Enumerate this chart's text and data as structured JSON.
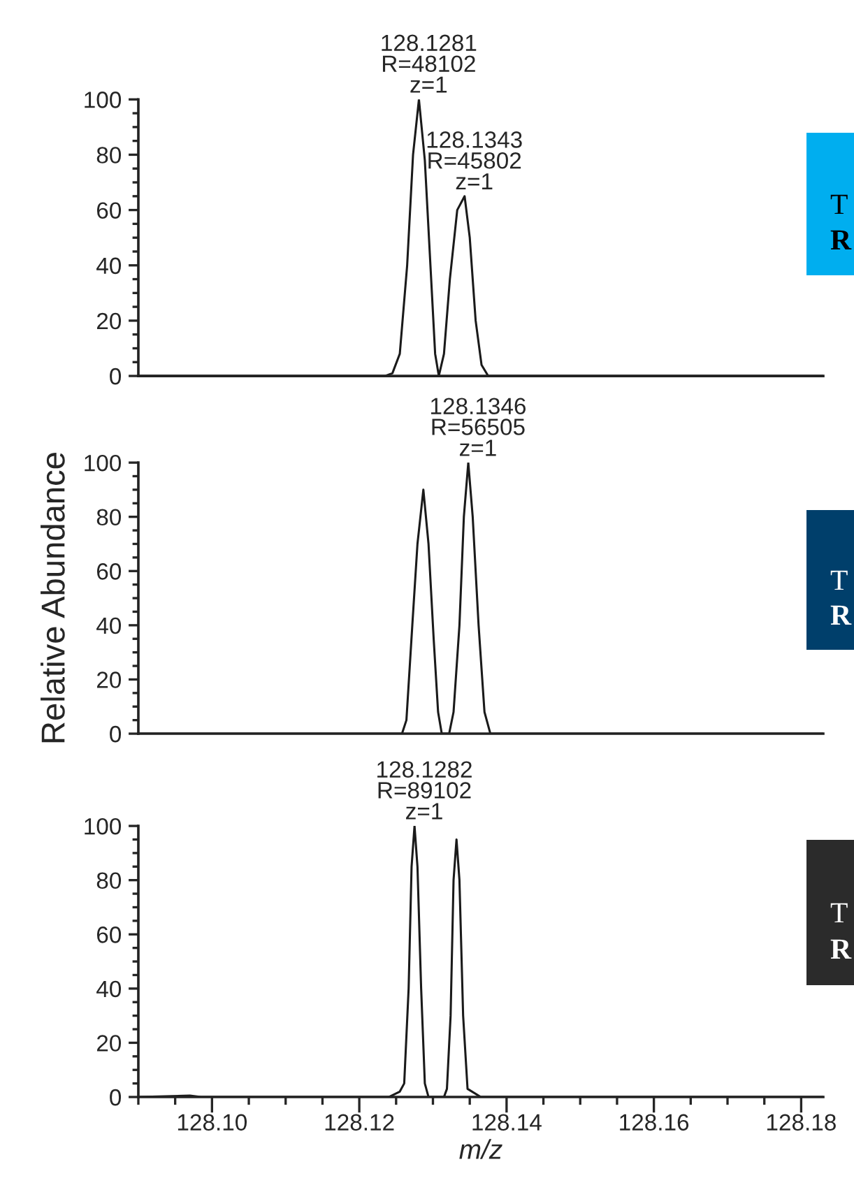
{
  "chart_data": [
    {
      "type": "line",
      "xlim": [
        128.09,
        128.183
      ],
      "ylim": [
        0,
        100
      ],
      "tick_labels": "y",
      "grid": false,
      "marker": "none",
      "line_style": "solid",
      "yticks": [
        0,
        {
          "value": 5,
          "label": null
        },
        {
          "value": 10,
          "label": null
        },
        {
          "value": 15,
          "label": null
        },
        20,
        {
          "value": 25,
          "label": null
        },
        {
          "value": 30,
          "label": null
        },
        {
          "value": 35,
          "label": null
        },
        40,
        {
          "value": 45,
          "label": null
        },
        {
          "value": 50,
          "label": null
        },
        {
          "value": 55,
          "label": null
        },
        60,
        {
          "value": 65,
          "label": null
        },
        {
          "value": 70,
          "label": null
        },
        {
          "value": 75,
          "label": null
        },
        80,
        {
          "value": 85,
          "label": null
        },
        {
          "value": 90,
          "label": null
        },
        {
          "value": 95,
          "label": null
        },
        100
      ],
      "series": [
        {
          "color": "#1a1a1a",
          "x": [
            128.09,
            128.1235,
            128.1245,
            128.1255,
            128.1265,
            128.1273,
            128.1281,
            128.1289,
            128.1297,
            128.1303,
            128.1308,
            128.1315,
            128.1323,
            128.1333,
            128.1343,
            128.135,
            128.1358,
            128.1366,
            128.1375,
            128.183
          ],
          "values": [
            0,
            0,
            1,
            8,
            40,
            80,
            100,
            78,
            38,
            8,
            0,
            8,
            35,
            60,
            65,
            50,
            20,
            4,
            0,
            0
          ]
        }
      ],
      "annotations": [
        {
          "text": "128.1281\nR=48102\nz=1",
          "x": 128.1281,
          "y": 100
        },
        {
          "text": "128.1343\nR=45802\nz=1",
          "x": 128.1343,
          "y": 65
        },
        "T",
        "R"
      ]
    },
    {
      "type": "line",
      "xlim": [
        128.09,
        128.183
      ],
      "ylim": [
        0,
        100
      ],
      "tick_labels": "y",
      "grid": false,
      "marker": "none",
      "line_style": "solid",
      "ylabel": "Relative Abundance",
      "yticks": [
        0,
        {
          "value": 5,
          "label": null
        },
        {
          "value": 10,
          "label": null
        },
        {
          "value": 15,
          "label": null
        },
        20,
        {
          "value": 25,
          "label": null
        },
        {
          "value": 30,
          "label": null
        },
        {
          "value": 35,
          "label": null
        },
        40,
        {
          "value": 45,
          "label": null
        },
        {
          "value": 50,
          "label": null
        },
        {
          "value": 55,
          "label": null
        },
        60,
        {
          "value": 65,
          "label": null
        },
        {
          "value": 70,
          "label": null
        },
        {
          "value": 75,
          "label": null
        },
        80,
        {
          "value": 85,
          "label": null
        },
        {
          "value": 90,
          "label": null
        },
        {
          "value": 95,
          "label": null
        },
        100
      ],
      "series": [
        {
          "color": "#1a1a1a",
          "x": [
            128.09,
            128.1258,
            128.1264,
            128.1272,
            128.1279,
            128.1287,
            128.1294,
            128.1301,
            128.1307,
            128.1312,
            128.1322,
            128.1328,
            128.1336,
            128.1342,
            128.1348,
            128.1354,
            128.1362,
            128.137,
            128.1378,
            128.183
          ],
          "values": [
            0,
            0,
            5,
            40,
            70,
            90,
            70,
            35,
            8,
            0,
            0,
            8,
            40,
            80,
            100,
            80,
            40,
            8,
            0,
            0
          ]
        }
      ],
      "annotations": [
        {
          "text": "128.1346\nR=56505\nz=1",
          "x": 128.1348,
          "y": 100
        },
        "T",
        "R"
      ]
    },
    {
      "type": "line",
      "xlim": [
        128.09,
        128.183
      ],
      "ylim": [
        0,
        100
      ],
      "grid": false,
      "marker": "none",
      "line_style": "solid",
      "xlabel": "m/z",
      "xticks": [
        {
          "value": 128.09,
          "label": null
        },
        {
          "value": 128.095,
          "label": null
        },
        {
          "value": 128.1,
          "label": "128.10"
        },
        {
          "value": 128.105,
          "label": null
        },
        {
          "value": 128.11,
          "label": null
        },
        {
          "value": 128.115,
          "label": null
        },
        {
          "value": 128.12,
          "label": "128.12"
        },
        {
          "value": 128.125,
          "label": null
        },
        {
          "value": 128.13,
          "label": null
        },
        {
          "value": 128.135,
          "label": null
        },
        {
          "value": 128.14,
          "label": "128.14"
        },
        {
          "value": 128.145,
          "label": null
        },
        {
          "value": 128.15,
          "label": null
        },
        {
          "value": 128.155,
          "label": null
        },
        {
          "value": 128.16,
          "label": "128.16"
        },
        {
          "value": 128.165,
          "label": null
        },
        {
          "value": 128.17,
          "label": null
        },
        {
          "value": 128.175,
          "label": null
        },
        {
          "value": 128.18,
          "label": "128.18"
        }
      ],
      "yticks": [
        0,
        {
          "value": 5,
          "label": null
        },
        {
          "value": 10,
          "label": null
        },
        {
          "value": 15,
          "label": null
        },
        20,
        {
          "value": 25,
          "label": null
        },
        {
          "value": 30,
          "label": null
        },
        {
          "value": 35,
          "label": null
        },
        40,
        {
          "value": 45,
          "label": null
        },
        {
          "value": 50,
          "label": null
        },
        {
          "value": 55,
          "label": null
        },
        60,
        {
          "value": 65,
          "label": null
        },
        {
          "value": 70,
          "label": null
        },
        {
          "value": 75,
          "label": null
        },
        80,
        {
          "value": 85,
          "label": null
        },
        {
          "value": 90,
          "label": null
        },
        {
          "value": 95,
          "label": null
        },
        100
      ],
      "series": [
        {
          "color": "#1a1a1a",
          "x": [
            128.09,
            128.097,
            128.0985,
            128.124,
            128.1255,
            128.1261,
            128.1267,
            128.1271,
            128.1275,
            128.1279,
            128.1284,
            128.1289,
            128.1294,
            128.1315,
            128.1319,
            128.1324,
            128.1328,
            128.1332,
            128.1336,
            128.1341,
            128.1347,
            128.1365,
            128.183
          ],
          "values": [
            0,
            0.5,
            0,
            0,
            2,
            5,
            40,
            85,
            100,
            85,
            40,
            5,
            0,
            0,
            3,
            30,
            80,
            95,
            80,
            30,
            3,
            0,
            0
          ]
        }
      ],
      "annotations": [
        {
          "text": "128.1282\nR=89102\nz=1",
          "x": 128.1275,
          "y": 100
        },
        "T",
        "R"
      ]
    }
  ]
}
